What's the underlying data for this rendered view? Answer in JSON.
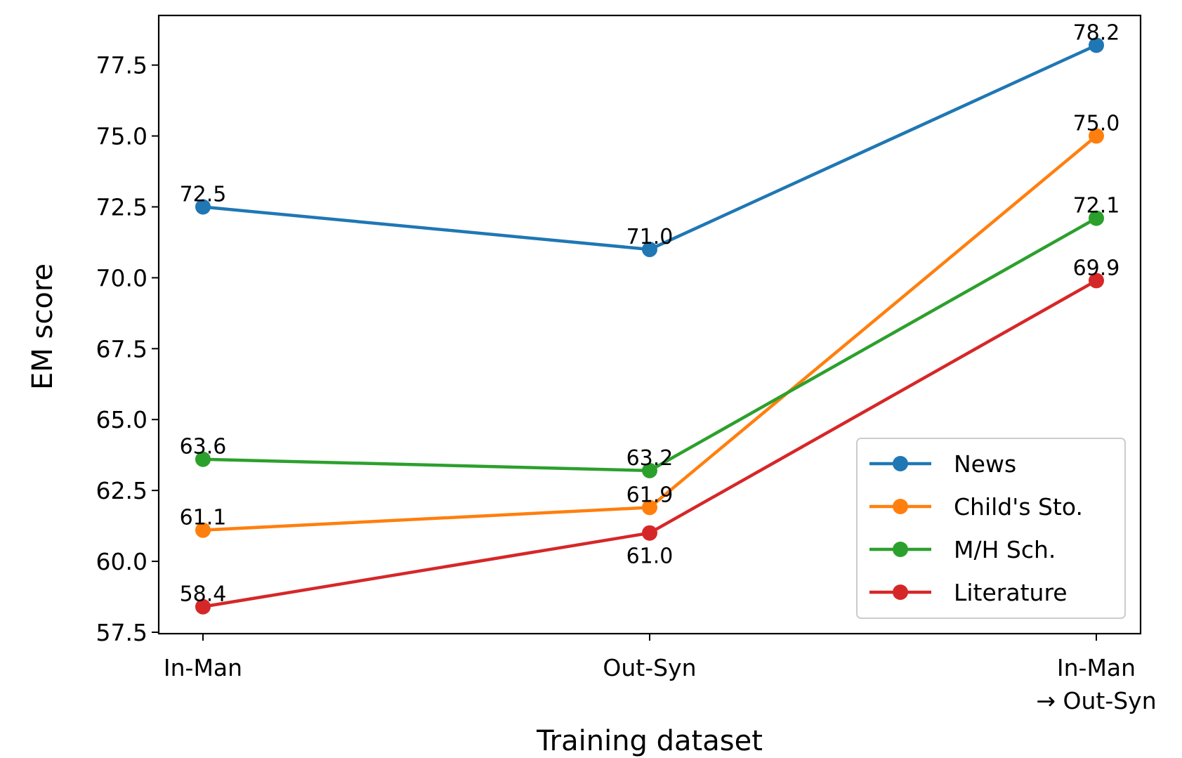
{
  "chart_data": {
    "type": "line",
    "title": "",
    "xlabel": "Training dataset",
    "ylabel": "EM score",
    "categories": [
      "In-Man",
      "Out-Syn",
      "In-Man\n→ Out-Syn"
    ],
    "ylim": [
      57.45,
      79.25
    ],
    "yticks": [
      "57.5",
      "60.0",
      "62.5",
      "65.0",
      "67.5",
      "70.0",
      "72.5",
      "75.0",
      "77.5"
    ],
    "grid": false,
    "legend_position": "lower-right",
    "series": [
      {
        "name": "News",
        "color": "#1f77b4",
        "values": [
          72.5,
          71.0,
          78.2
        ],
        "labels": [
          "72.5",
          "71.0",
          "78.2"
        ],
        "label_pos": [
          "above",
          "above",
          "above"
        ]
      },
      {
        "name": "Child's Sto.",
        "color": "#ff7f0e",
        "values": [
          61.1,
          61.9,
          75.0
        ],
        "labels": [
          "61.1",
          "61.9",
          "75.0"
        ],
        "label_pos": [
          "above",
          "above",
          "above"
        ]
      },
      {
        "name": "M/H Sch.",
        "color": "#2ca02c",
        "values": [
          63.6,
          63.2,
          72.1
        ],
        "labels": [
          "63.6",
          "63.2",
          "72.1"
        ],
        "label_pos": [
          "above",
          "above",
          "above"
        ]
      },
      {
        "name": "Literature",
        "color": "#d62728",
        "values": [
          58.4,
          61.0,
          69.9
        ],
        "labels": [
          "58.4",
          "61.0",
          "69.9"
        ],
        "label_pos": [
          "above",
          "below",
          "above"
        ]
      }
    ]
  }
}
